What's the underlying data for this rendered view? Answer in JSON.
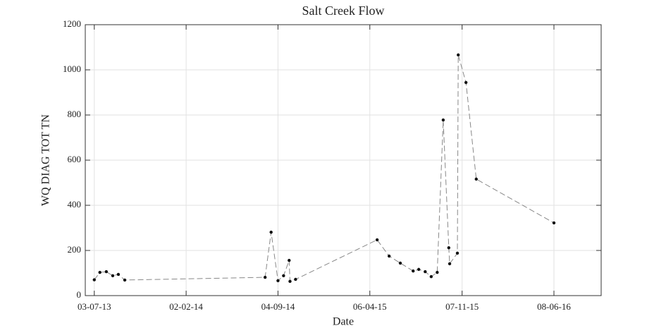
{
  "chart_data": {
    "type": "line",
    "title": "Salt Creek Flow",
    "x_label": "Date",
    "y_label": "WQ DIAG TOT TN",
    "x": [
      "2013-07-03",
      "2013-07-16",
      "2013-07-31",
      "2013-08-15",
      "2013-08-28",
      "2013-09-12",
      "2014-08-05",
      "2014-08-19",
      "2014-09-04",
      "2014-09-17",
      "2014-09-30",
      "2014-10-02",
      "2014-10-15",
      "2015-04-23",
      "2015-05-21",
      "2015-06-16",
      "2015-07-16",
      "2015-07-29",
      "2015-08-13",
      "2015-08-27",
      "2015-09-10",
      "2015-09-24",
      "2015-10-07",
      "2015-10-09",
      "2015-10-27",
      "2015-10-29",
      "2015-11-16",
      "2015-12-10",
      "2016-06-08"
    ],
    "series": [
      {
        "color": "#888888",
        "marker_color": "#111111",
        "values": [
          70,
          103,
          106,
          88,
          94,
          69,
          81,
          281,
          66,
          88,
          156,
          63,
          72,
          247,
          175,
          144,
          109,
          116,
          106,
          84,
          103,
          778,
          212,
          141,
          188,
          1066,
          944,
          516,
          322
        ]
      }
    ],
    "xlim": [
      "2013-06-12",
      "2016-09-26"
    ],
    "xticks": [
      {
        "value": "2013-07-03",
        "label": "03-07-13"
      },
      {
        "value": "2014-02-02",
        "label": "02-02-14"
      },
      {
        "value": "2014-09-04",
        "label": "04-09-14"
      },
      {
        "value": "2015-04-06",
        "label": "06-04-15"
      },
      {
        "value": "2015-11-07",
        "label": "07-11-15"
      },
      {
        "value": "2016-06-08",
        "label": "08-06-16"
      }
    ],
    "ylim": [
      0,
      1200
    ],
    "yticks": [
      0,
      200,
      400,
      600,
      800,
      1000,
      1200
    ],
    "grid": true
  }
}
